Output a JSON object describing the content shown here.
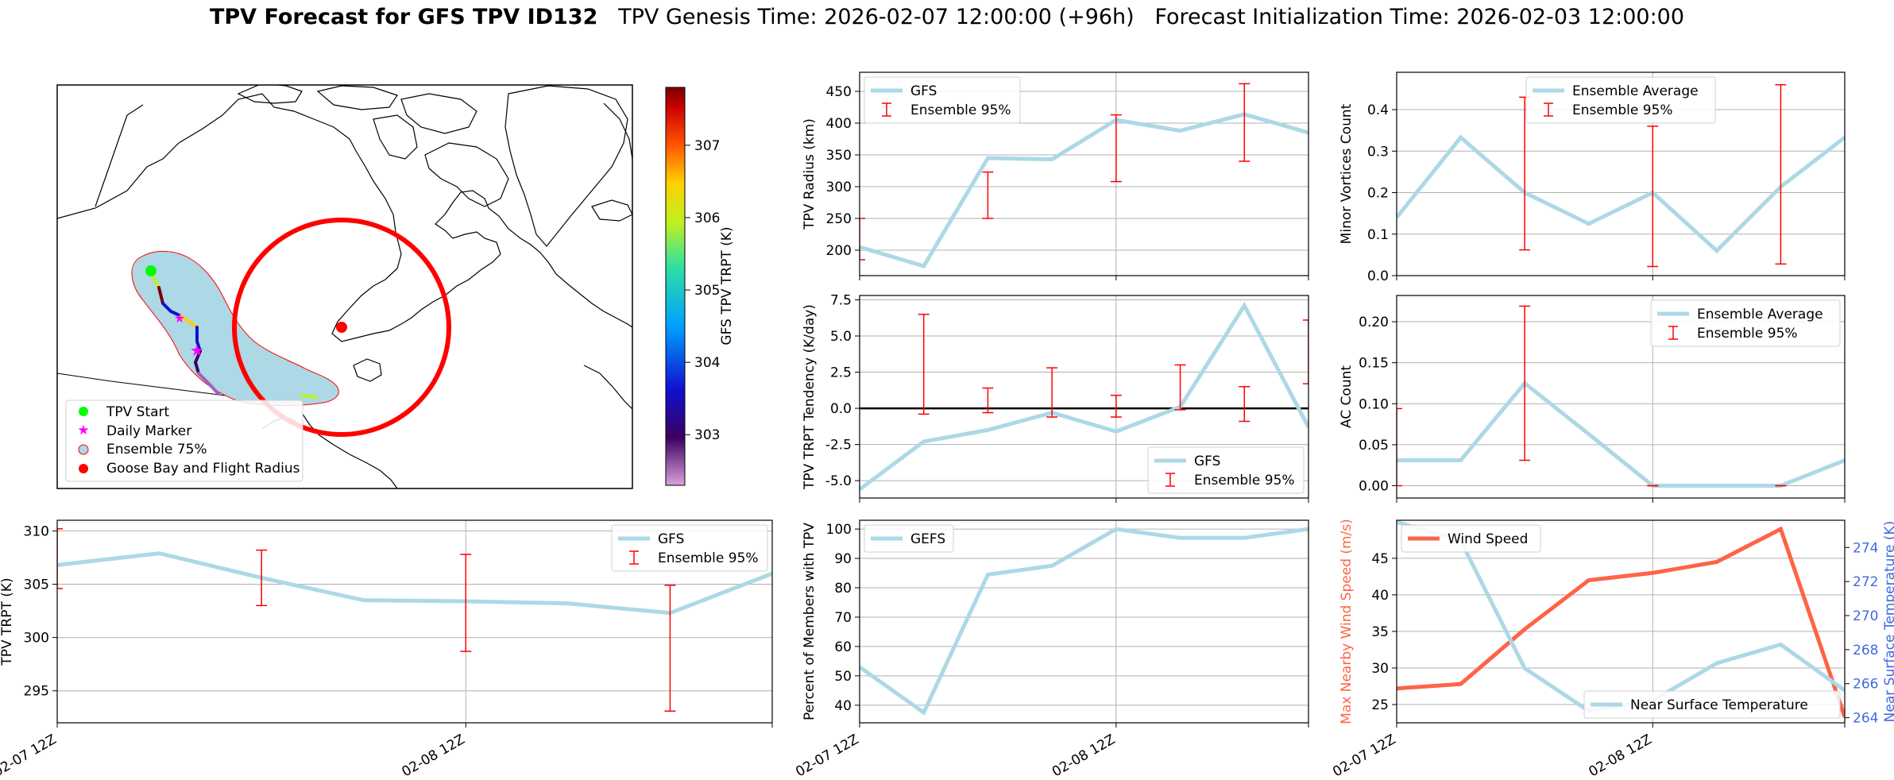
{
  "title": {
    "bold": "TPV Forecast for GFS TPV ID132",
    "genesis": "TPV Genesis Time: 2026-02-07 12:00:00 (+96h)",
    "init": "Forecast Initialization Time: 2026-02-03 12:00:00"
  },
  "colors": {
    "line": "#add8e6",
    "error": "#ff0000",
    "wind": "#ff6347",
    "temp": "#4169e1",
    "grid": "#b0b0b0"
  },
  "map": {
    "colorbar": {
      "label": "GFS TPV TRPT (K)",
      "ticks": [
        303,
        304,
        305,
        306,
        307
      ],
      "range": [
        302.3,
        307.8
      ]
    },
    "legend": [
      "TPV Start",
      "Daily Marker",
      "Ensemble 75%",
      "Goose Bay and Flight Radius"
    ]
  },
  "x_tick_labels": [
    "02-07 12Z",
    "02-08 12Z"
  ],
  "chart_data": [
    {
      "id": "trpt",
      "type": "line",
      "title": "",
      "xlabel": "",
      "ylabel": "TPV TRPT (K)",
      "x": [
        0,
        1,
        2,
        3,
        4,
        5,
        6,
        7
      ],
      "ylim": [
        292,
        311
      ],
      "yticks": [
        295,
        300,
        305,
        310
      ],
      "series": [
        {
          "name": "GFS",
          "values": [
            306.8,
            307.9,
            305.6,
            303.5,
            303.4,
            303.2,
            302.3,
            306.0
          ]
        }
      ],
      "errorbars": {
        "name": "Ensemble 95%",
        "x": [
          0,
          2,
          4,
          6
        ],
        "low": [
          304.6,
          303.0,
          298.7,
          293.1
        ],
        "high": [
          310.2,
          308.2,
          307.8,
          304.9
        ]
      },
      "legend": [
        "GFS",
        "Ensemble 95%"
      ],
      "legend_loc": "upper right"
    },
    {
      "id": "radius",
      "type": "line",
      "title": "",
      "xlabel": "",
      "ylabel": "TPV Radius (km)",
      "x": [
        0,
        1,
        2,
        3,
        4,
        5,
        6,
        7
      ],
      "ylim": [
        160,
        480
      ],
      "yticks": [
        200,
        250,
        300,
        350,
        400,
        450
      ],
      "series": [
        {
          "name": "GFS",
          "values": [
            205,
            175,
            345,
            343,
            405,
            388,
            414,
            385
          ]
        }
      ],
      "errorbars": {
        "name": "Ensemble 95%",
        "x": [
          0,
          2,
          4,
          6
        ],
        "low": [
          185,
          250,
          308,
          340
        ],
        "high": [
          250,
          323,
          413,
          462
        ]
      },
      "legend": [
        "GFS",
        "Ensemble 95%"
      ],
      "legend_loc": "upper left"
    },
    {
      "id": "tendency",
      "type": "line",
      "title": "",
      "xlabel": "",
      "ylabel": "TPV TRPT Tendency (K/day)",
      "x": [
        0,
        1,
        2,
        3,
        4,
        5,
        6,
        7
      ],
      "ylim": [
        -6.2,
        7.8
      ],
      "yticks": [
        -5.0,
        -2.5,
        0.0,
        2.5,
        5.0,
        7.5
      ],
      "series": [
        {
          "name": "GFS",
          "values": [
            -5.6,
            -2.3,
            -1.5,
            -0.3,
            -1.6,
            0.1,
            7.1,
            -1.3
          ]
        }
      ],
      "errorbars": {
        "name": "Ensemble 95%",
        "x": [
          1,
          2,
          3,
          4,
          5,
          6,
          7
        ],
        "low": [
          -0.4,
          -0.3,
          -0.6,
          -0.6,
          -0.1,
          -0.9,
          1.7
        ],
        "high": [
          6.5,
          1.4,
          2.8,
          0.9,
          3.0,
          1.5,
          6.1
        ]
      },
      "zero_line": true,
      "legend": [
        "GFS",
        "Ensemble 95%"
      ],
      "legend_loc": "lower right"
    },
    {
      "id": "members",
      "type": "line",
      "title": "",
      "xlabel": "",
      "ylabel": "Percent of Members with TPV",
      "x": [
        0,
        1,
        2,
        3,
        4,
        5,
        6,
        7
      ],
      "ylim": [
        34,
        103
      ],
      "yticks": [
        40,
        50,
        60,
        70,
        80,
        90,
        100
      ],
      "series": [
        {
          "name": "GEFS",
          "values": [
            53,
            37.5,
            84.5,
            87.5,
            100,
            97,
            97,
            100
          ]
        }
      ],
      "legend": [
        "GEFS"
      ],
      "legend_loc": "upper left"
    },
    {
      "id": "minor",
      "type": "line",
      "title": "",
      "xlabel": "",
      "ylabel": "Minor Vortices Count",
      "x": [
        0,
        1,
        2,
        3,
        4,
        5,
        6,
        7
      ],
      "ylim": [
        0,
        0.49
      ],
      "yticks": [
        0.0,
        0.1,
        0.2,
        0.3,
        0.4
      ],
      "series": [
        {
          "name": "Ensemble Average",
          "values": [
            0.14,
            0.333,
            0.2,
            0.125,
            0.2,
            0.06,
            0.214,
            0.333
          ]
        }
      ],
      "errorbars": {
        "name": "Ensemble 95%",
        "x": [
          2,
          4,
          6
        ],
        "low": [
          0.062,
          0.022,
          0.028
        ],
        "high": [
          0.43,
          0.36,
          0.46
        ]
      },
      "legend": [
        "Ensemble Average",
        "Ensemble 95%"
      ],
      "legend_loc": "upper center"
    },
    {
      "id": "ac",
      "type": "line",
      "title": "",
      "xlabel": "",
      "ylabel": "AC Count",
      "x": [
        0,
        1,
        2,
        3,
        4,
        5,
        6,
        7
      ],
      "ylim": [
        -0.015,
        0.232
      ],
      "yticks": [
        0.0,
        0.05,
        0.1,
        0.15,
        0.2
      ],
      "series": [
        {
          "name": "Ensemble Average",
          "values": [
            0.031,
            0.031,
            0.125,
            0.063,
            0.0,
            0.0,
            0.0,
            0.031
          ]
        }
      ],
      "errorbars": {
        "name": "Ensemble 95%",
        "x": [
          0,
          2,
          4,
          6
        ],
        "low": [
          0.0,
          0.031,
          0.0,
          0.0
        ],
        "high": [
          0.094,
          0.219,
          0.0,
          0.0
        ]
      },
      "legend": [
        "Ensemble Average",
        "Ensemble 95%"
      ],
      "legend_loc": "upper right"
    },
    {
      "id": "wind",
      "type": "line",
      "title": "",
      "xlabel": "",
      "ylabel": "Max Nearby Wind Speed (m/s)",
      "ylabel_right": "Near Surface Temperature (K)",
      "x": [
        0,
        1,
        2,
        3,
        4,
        5,
        6,
        7
      ],
      "ylim": [
        22.5,
        50.2
      ],
      "yticks": [
        25,
        30,
        35,
        40,
        45
      ],
      "ylim_right": [
        263.7,
        275.6
      ],
      "yticks_right": [
        264,
        266,
        268,
        270,
        272,
        274
      ],
      "series": [
        {
          "name": "Wind Speed",
          "axis": "left",
          "values": [
            27.2,
            27.8,
            35.3,
            42.0,
            43.0,
            44.5,
            49.0,
            23.3
          ]
        },
        {
          "name": "Near Surface Temperature",
          "axis": "right",
          "values": [
            275.5,
            274.4,
            266.9,
            264.4,
            265.0,
            267.2,
            268.3,
            265.6
          ]
        }
      ],
      "legend_left": [
        "Wind Speed"
      ],
      "legend_right": [
        "Near Surface Temperature"
      ]
    }
  ]
}
